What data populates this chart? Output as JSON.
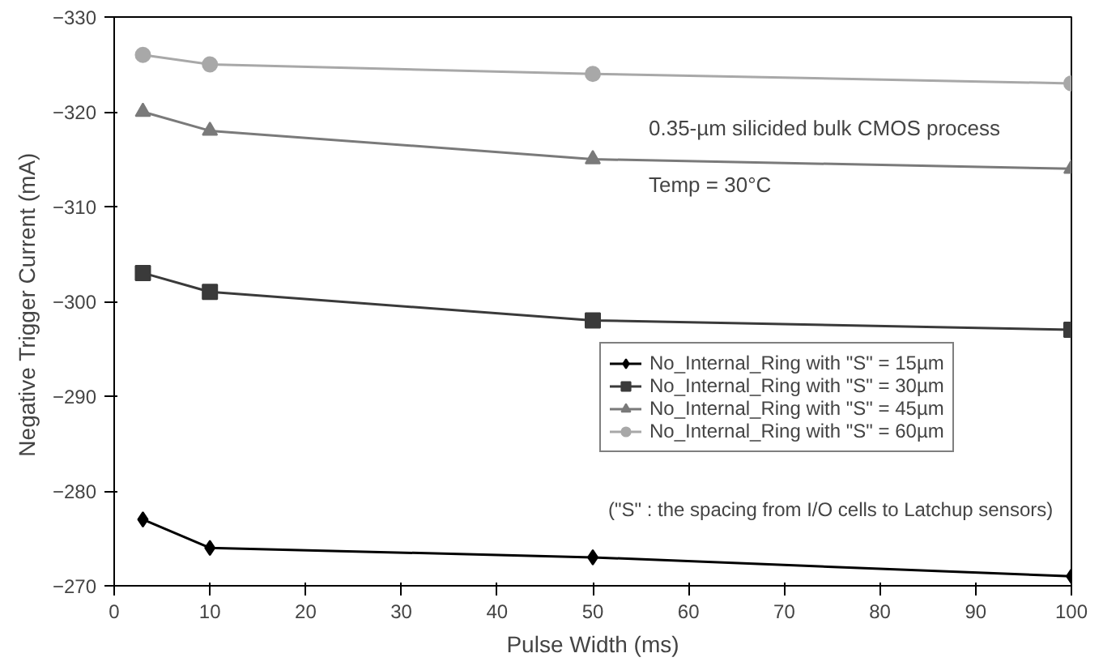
{
  "chart_data": {
    "type": "line",
    "xlabel": "Pulse Width (ms)",
    "ylabel": "Negative Trigger  Current (mA)",
    "x": [
      3,
      10,
      50,
      100
    ],
    "series": [
      {
        "name": "No_Internal_Ring with \"S\" = 15µm",
        "color": "#000000",
        "marker": "diamond",
        "values": [
          -277,
          -274,
          -273,
          -271
        ]
      },
      {
        "name": "No_Internal_Ring with \"S\" = 30µm",
        "color": "#3a3a3a",
        "marker": "square",
        "values": [
          -303,
          -301,
          -298,
          -297
        ]
      },
      {
        "name": "No_Internal_Ring with \"S\" = 45µm",
        "color": "#7a7a7a",
        "marker": "triangle",
        "values": [
          -320,
          -318,
          -315,
          -314
        ]
      },
      {
        "name": "No_Internal_Ring with \"S\" = 60µm",
        "color": "#a8a8a8",
        "marker": "circle",
        "values": [
          -326,
          -325,
          -324,
          -323
        ]
      }
    ],
    "xlim": [
      0,
      100
    ],
    "xticks": [
      0,
      10,
      20,
      30,
      40,
      50,
      60,
      70,
      80,
      90,
      100
    ],
    "ylim": [
      -270,
      -330
    ],
    "yticks": [
      -270,
      -280,
      -290,
      -300,
      -310,
      -320,
      -330
    ],
    "annotations": [
      "0.35-µm silicided bulk CMOS process",
      "Temp = 30°C",
      "(\"S\" : the spacing from I/O cells to Latchup sensors)"
    ],
    "legend": "right",
    "grid": false,
    "line_style": "solid"
  }
}
